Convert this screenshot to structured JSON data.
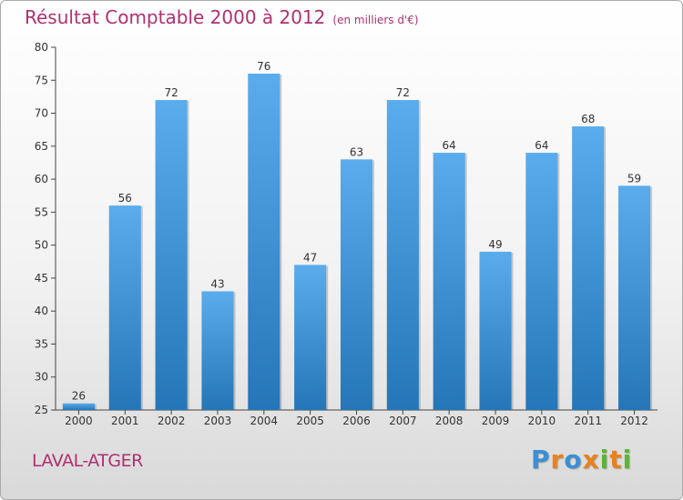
{
  "header": {
    "title": "Résultat Comptable 2000 à 2012",
    "subtitle": "(en milliers d'€)"
  },
  "footer": {
    "location": "LAVAL-ATGER",
    "brand_letters": [
      "P",
      "r",
      "o",
      "x",
      "i",
      "t",
      "i"
    ],
    "brand_colors": [
      "#3a8fd6",
      "#e8821e",
      "#3a8fd6",
      "#e8821e",
      "#5cb531",
      "#e8821e",
      "#5cb531"
    ]
  },
  "chart_data": {
    "type": "bar",
    "categories": [
      "2000",
      "2001",
      "2002",
      "2003",
      "2004",
      "2005",
      "2006",
      "2007",
      "2008",
      "2009",
      "2010",
      "2011",
      "2012"
    ],
    "values": [
      26,
      56,
      72,
      43,
      76,
      47,
      63,
      72,
      64,
      49,
      64,
      68,
      59
    ],
    "ylim": [
      25,
      80
    ],
    "yticks": [
      25,
      30,
      35,
      40,
      45,
      50,
      55,
      60,
      65,
      70,
      75,
      80
    ],
    "grid": false,
    "bar_color_light": "#5aacec",
    "bar_color_dark": "#2576b8"
  }
}
